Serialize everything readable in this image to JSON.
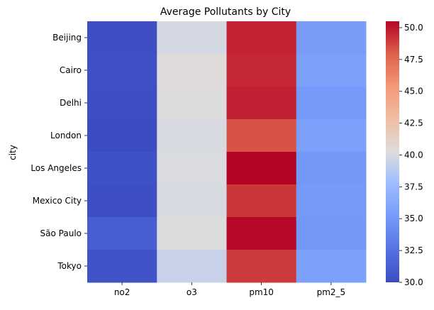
{
  "chart_data": {
    "type": "heatmap",
    "title": "Average Pollutants by City",
    "xlabel": "",
    "ylabel": "city",
    "x_categories": [
      "no2",
      "o3",
      "pm10",
      "pm2_5"
    ],
    "y_categories": [
      "Beijing",
      "Cairo",
      "Delhi",
      "London",
      "Los Angeles",
      "Mexico City",
      "São Paulo",
      "Tokyo"
    ],
    "values": [
      [
        30.2,
        39.9,
        49.6,
        35.3
      ],
      [
        30.3,
        40.4,
        49.5,
        35.6
      ],
      [
        30.2,
        40.2,
        49.7,
        35.1
      ],
      [
        30.1,
        40.0,
        48.3,
        35.5
      ],
      [
        30.4,
        40.1,
        50.5,
        35.0
      ],
      [
        30.2,
        40.0,
        49.1,
        35.1
      ],
      [
        31.2,
        40.3,
        50.4,
        35.0
      ],
      [
        30.5,
        39.4,
        49.0,
        35.6
      ]
    ],
    "colormap": "coolwarm",
    "colorbar": {
      "min": 30.0,
      "max": 50.5,
      "ticks": [
        "30.0",
        "32.5",
        "35.0",
        "37.5",
        "40.0",
        "42.5",
        "45.0",
        "47.5",
        "50.0"
      ]
    },
    "grid": false,
    "legend": "colorbar-right"
  }
}
